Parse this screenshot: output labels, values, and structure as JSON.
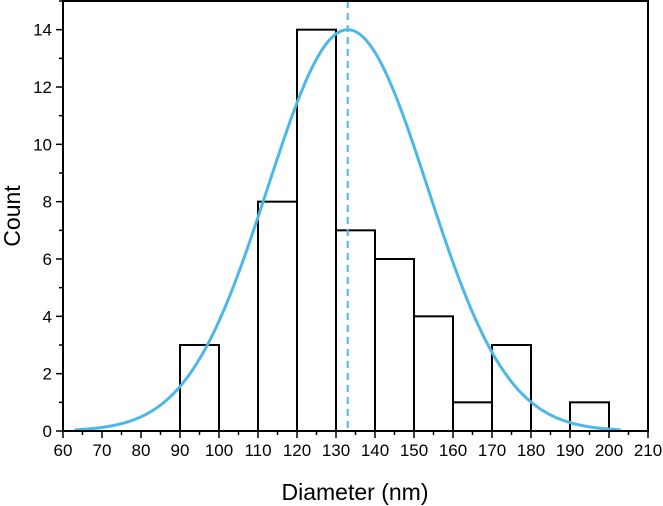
{
  "chart_data": {
    "type": "bar",
    "xlabel": "Diameter (nm)",
    "ylabel": "Count",
    "xlim": [
      60,
      210
    ],
    "ylim": [
      0,
      15
    ],
    "x_ticks": [
      "60",
      "70",
      "80",
      "90",
      "100",
      "110",
      "120",
      "130",
      "140",
      "150",
      "160",
      "170",
      "180",
      "190",
      "200",
      "210"
    ],
    "y_ticks": [
      "0",
      "2",
      "4",
      "6",
      "8",
      "10",
      "12",
      "14"
    ],
    "bins": [
      {
        "start": 90,
        "end": 100,
        "count": 3
      },
      {
        "start": 110,
        "end": 120,
        "count": 8
      },
      {
        "start": 120,
        "end": 130,
        "count": 14
      },
      {
        "start": 130,
        "end": 140,
        "count": 7
      },
      {
        "start": 140,
        "end": 150,
        "count": 6
      },
      {
        "start": 150,
        "end": 160,
        "count": 4
      },
      {
        "start": 160,
        "end": 170,
        "count": 1
      },
      {
        "start": 170,
        "end": 180,
        "count": 3
      },
      {
        "start": 190,
        "end": 200,
        "count": 1
      }
    ],
    "fit_curve": {
      "type": "gaussian",
      "mean": 133,
      "sigma": 20.5,
      "amplitude": 14,
      "x_range": [
        63,
        203
      ],
      "color": "#4db8e8"
    },
    "mean_line": {
      "x": 133,
      "color": "#4db8e8",
      "style": "dashed"
    },
    "bar_fill": "#ffffff",
    "bar_stroke": "#000000",
    "grid": false
  }
}
